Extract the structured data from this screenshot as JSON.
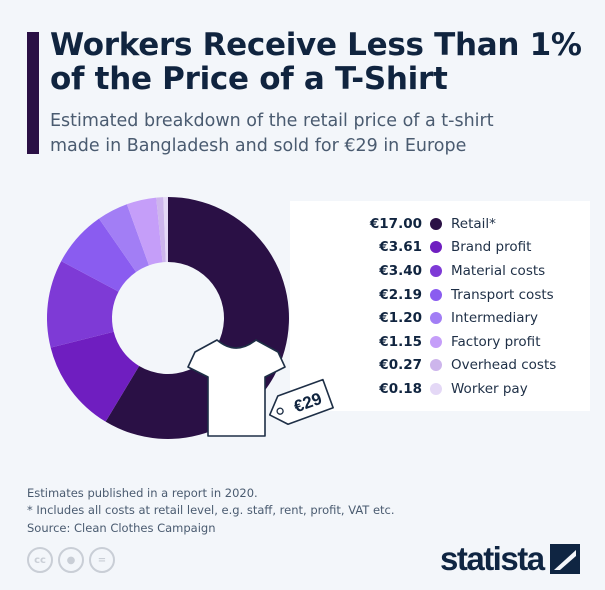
{
  "header": {
    "title_line1": "Workers Receive Less Than 1%",
    "title_line2": "of the Price of a T-Shirt",
    "subtitle_line1": "Estimated breakdown of the retail price of a t-shirt",
    "subtitle_line2": "made in Bangladesh and sold for €29 in Europe"
  },
  "chart_data": {
    "type": "pie",
    "variant": "donut",
    "title": "Workers Receive Less Than 1% of the Price of a T-Shirt",
    "total_label": "€29",
    "categories": [
      "Retail*",
      "Brand profit",
      "Material costs",
      "Transport costs",
      "Intermediary",
      "Factory profit",
      "Overhead costs",
      "Worker pay"
    ],
    "values": [
      17.0,
      3.61,
      3.4,
      2.19,
      1.2,
      1.15,
      0.27,
      0.18
    ],
    "value_labels": [
      "€17.00",
      "€3.61",
      "€3.40",
      "€2.19",
      "€1.20",
      "€1.15",
      "€0.27",
      "€0.18"
    ],
    "colors": [
      "#2a1045",
      "#6f1ec0",
      "#7e3ad6",
      "#8a5cf0",
      "#a27ef5",
      "#c59ef9",
      "#cdb5ec",
      "#e4d8f6"
    ],
    "legend_position": "right"
  },
  "footer": {
    "note1": "Estimates published in a report in 2020.",
    "note2": "* Includes all costs at retail level, e.g. staff, rent, profit, VAT etc.",
    "source": "Source: Clean Clothes Campaign",
    "cc": "cc",
    "brand": "statista"
  }
}
